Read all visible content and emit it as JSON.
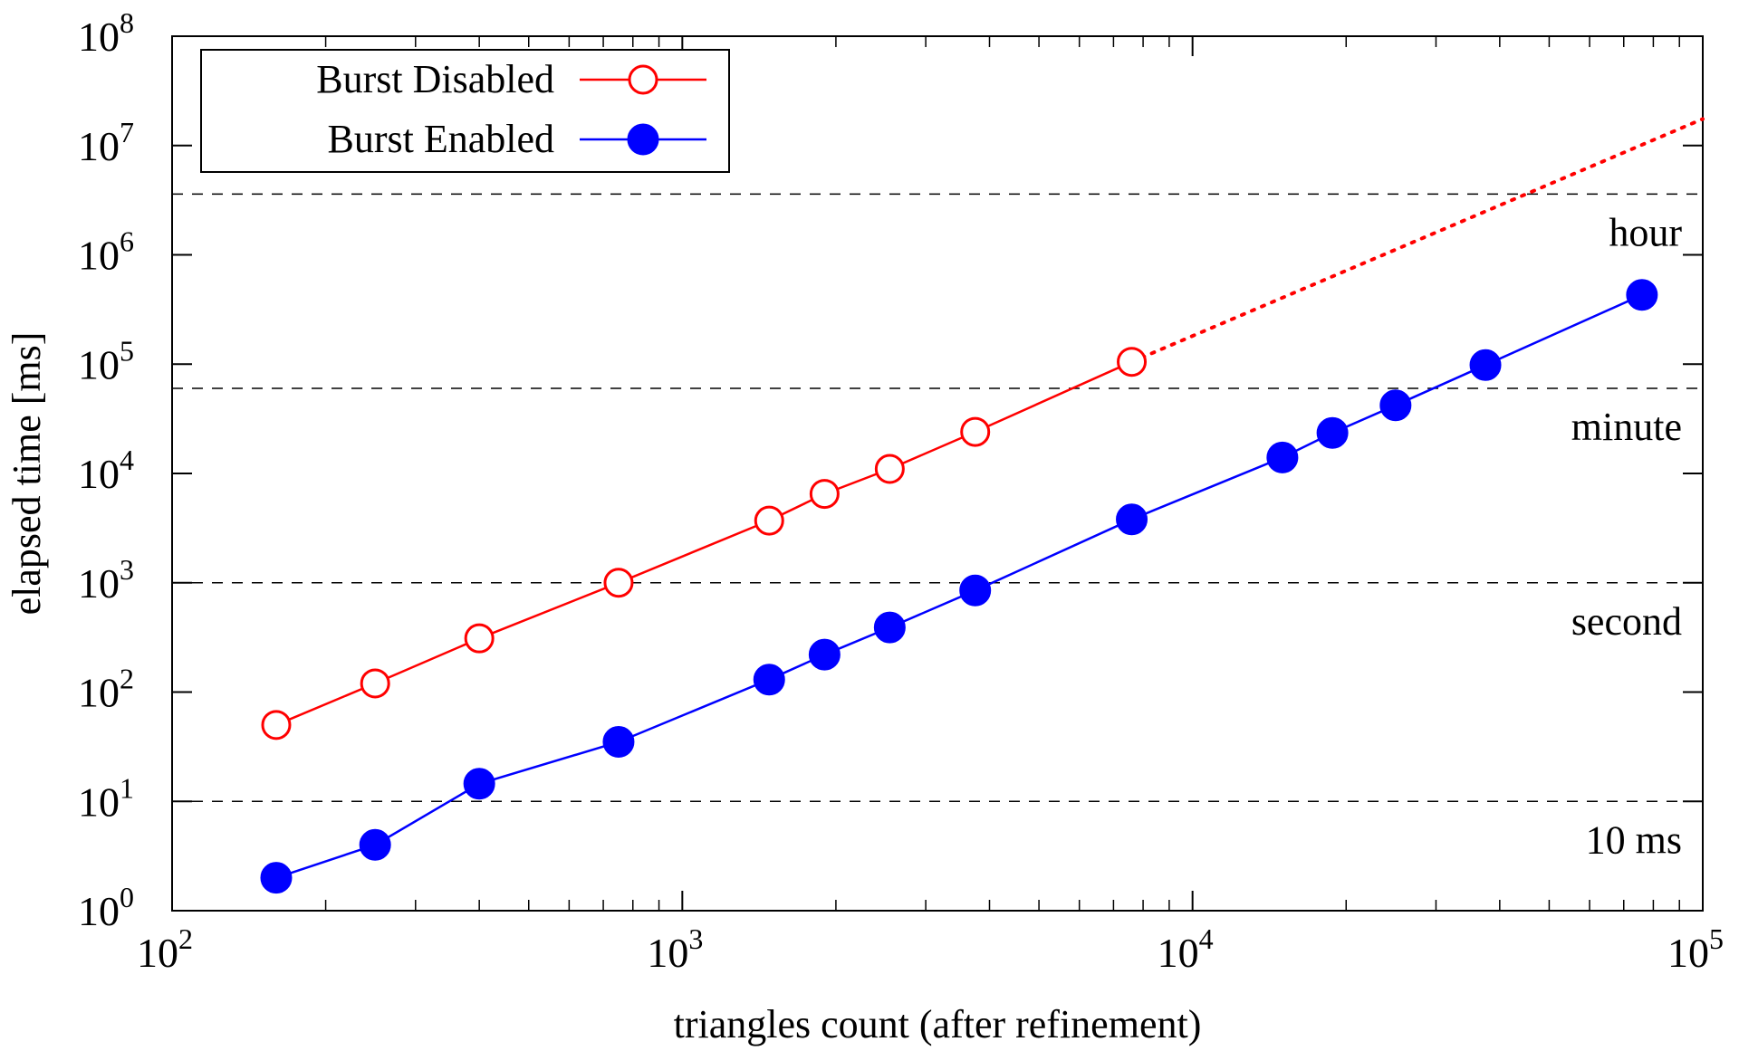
{
  "chart_data": {
    "type": "line",
    "xscale": "log",
    "yscale": "log",
    "xlim": [
      100,
      100000
    ],
    "ylim": [
      1,
      100000000
    ],
    "xlabel": "triangles count (after refinement)",
    "ylabel": "elapsed time [ms]",
    "x_ticks": [
      {
        "value": 100,
        "base": "10",
        "exp": "2"
      },
      {
        "value": 1000,
        "base": "10",
        "exp": "3"
      },
      {
        "value": 10000,
        "base": "10",
        "exp": "4"
      },
      {
        "value": 100000,
        "base": "10",
        "exp": "5"
      }
    ],
    "y_ticks": [
      {
        "value": 1,
        "base": "10",
        "exp": "0"
      },
      {
        "value": 10,
        "base": "10",
        "exp": "1"
      },
      {
        "value": 100,
        "base": "10",
        "exp": "2"
      },
      {
        "value": 1000,
        "base": "10",
        "exp": "3"
      },
      {
        "value": 10000,
        "base": "10",
        "exp": "4"
      },
      {
        "value": 100000,
        "base": "10",
        "exp": "5"
      },
      {
        "value": 1000000,
        "base": "10",
        "exp": "6"
      },
      {
        "value": 10000000,
        "base": "10",
        "exp": "7"
      },
      {
        "value": 100000000,
        "base": "10",
        "exp": "8"
      }
    ],
    "reference_lines": [
      {
        "label": "10 ms",
        "value": 10
      },
      {
        "label": "second",
        "value": 1000
      },
      {
        "label": "minute",
        "value": 60000
      },
      {
        "label": "hour",
        "value": 3600000
      }
    ],
    "legend_position": "top-left",
    "series": [
      {
        "name": "Burst Disabled",
        "color": "#ff0000",
        "marker": "open-circle",
        "x": [
          160,
          250,
          400,
          750,
          1480,
          1900,
          2550,
          3750,
          7600
        ],
        "y": [
          50,
          120,
          310,
          1000,
          3700,
          6500,
          11000,
          24000,
          105000
        ]
      },
      {
        "name": "Burst Enabled",
        "color": "#0000ff",
        "marker": "filled-circle",
        "x": [
          160,
          250,
          400,
          750,
          1480,
          1900,
          2550,
          3750,
          7600,
          15000,
          18800,
          25000,
          37500,
          76000
        ],
        "y": [
          2,
          4,
          14.5,
          35,
          130,
          220,
          390,
          850,
          3800,
          14000,
          23500,
          42000,
          98000,
          430000
        ]
      }
    ],
    "extrapolation": {
      "series": "Burst Disabled",
      "style": "dotted",
      "color": "#ff0000",
      "x": [
        7600,
        100000
      ],
      "y": [
        105000,
        17500000
      ]
    }
  }
}
